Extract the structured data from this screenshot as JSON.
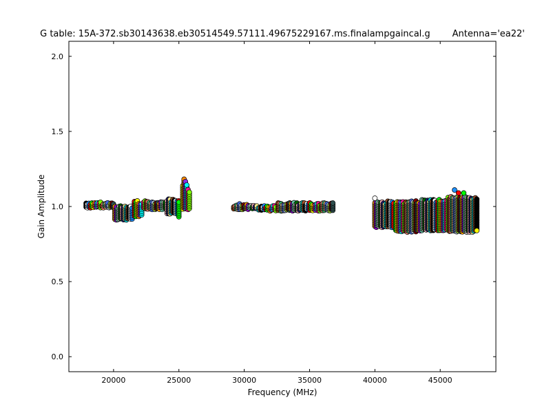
{
  "chart_data": {
    "type": "scatter",
    "title": "G table: 15A-372.sb30143638.eb30514549.57111.49675229167.ms.finalampgaincal.g",
    "subtitle": "Antenna='ea22'",
    "xlabel": "Frequency (MHz)",
    "ylabel": "Gain Amplitude",
    "xlim": [
      16580,
      49260
    ],
    "ylim": [
      -0.1,
      2.1
    ],
    "xticks": [
      "20000",
      "25000",
      "30000",
      "35000",
      "40000",
      "45000"
    ],
    "yticks": [
      "0.0",
      "0.5",
      "1.0",
      "1.5",
      "2.0"
    ],
    "grid": false,
    "marker": "circle",
    "bands": [
      {
        "x_start": 17900,
        "x_end": 20000,
        "y_min": 0.99,
        "y_max": 1.03
      },
      {
        "x_start": 20100,
        "x_end": 21500,
        "y_min": 0.91,
        "y_max": 1.01
      },
      {
        "x_start": 21600,
        "x_end": 22200,
        "y_min": 0.93,
        "y_max": 1.04
      },
      {
        "x_start": 22300,
        "x_end": 24000,
        "y_min": 0.98,
        "y_max": 1.04
      },
      {
        "x_start": 24100,
        "x_end": 25000,
        "y_min": 0.95,
        "y_max": 1.05
      },
      {
        "x_start": 25000,
        "x_end": 25100,
        "y_min": 0.92,
        "y_max": 1.04
      },
      {
        "x_start": 25300,
        "x_end": 25300,
        "y_min": 0.98,
        "y_max": 1.14
      },
      {
        "x_start": 25400,
        "x_end": 25400,
        "y_min": 0.98,
        "y_max": 1.19
      },
      {
        "x_start": 25500,
        "x_end": 25500,
        "y_min": 0.98,
        "y_max": 1.17
      },
      {
        "x_start": 25600,
        "x_end": 25600,
        "y_min": 0.98,
        "y_max": 1.15
      },
      {
        "x_start": 25700,
        "x_end": 25700,
        "y_min": 0.98,
        "y_max": 1.13
      },
      {
        "x_start": 25800,
        "x_end": 25800,
        "y_min": 0.98,
        "y_max": 1.11
      },
      {
        "x_start": 29200,
        "x_end": 31000,
        "y_min": 0.98,
        "y_max": 1.02
      },
      {
        "x_start": 31100,
        "x_end": 32500,
        "y_min": 0.97,
        "y_max": 1.01
      },
      {
        "x_start": 32600,
        "x_end": 36800,
        "y_min": 0.97,
        "y_max": 1.03
      },
      {
        "x_start": 40000,
        "x_end": 41500,
        "y_min": 0.86,
        "y_max": 1.04
      },
      {
        "x_start": 41600,
        "x_end": 43500,
        "y_min": 0.83,
        "y_max": 1.04
      },
      {
        "x_start": 43600,
        "x_end": 45500,
        "y_min": 0.84,
        "y_max": 1.05
      },
      {
        "x_start": 45600,
        "x_end": 47800,
        "y_min": 0.83,
        "y_max": 1.07
      }
    ],
    "outliers": [
      {
        "x": 40000,
        "y": 1.055
      },
      {
        "x": 46100,
        "y": 1.11
      },
      {
        "x": 46400,
        "y": 1.09
      },
      {
        "x": 46800,
        "y": 1.09
      },
      {
        "x": 47800,
        "y": 0.84
      }
    ],
    "colors": [
      "#000000",
      "#ffffff",
      "#1e90ff",
      "#ff0000",
      "#00ff00",
      "#ffff00",
      "#ff8c00",
      "#8a2be2",
      "#00ffff",
      "#ff1493",
      "#7fff00",
      "#8b4513",
      "#fa8072",
      "#3cb371",
      "#deb887",
      "#4169e1",
      "#b0c4de",
      "#9acd32",
      "#800000",
      "#2f4f4f",
      "#ffa500",
      "#9400d3",
      "#66cdaa",
      "#c0c0c0",
      "#006400",
      "#ffb6c1",
      "#191970",
      "#f0e68c",
      "#00ced1",
      "#a0522d"
    ]
  }
}
